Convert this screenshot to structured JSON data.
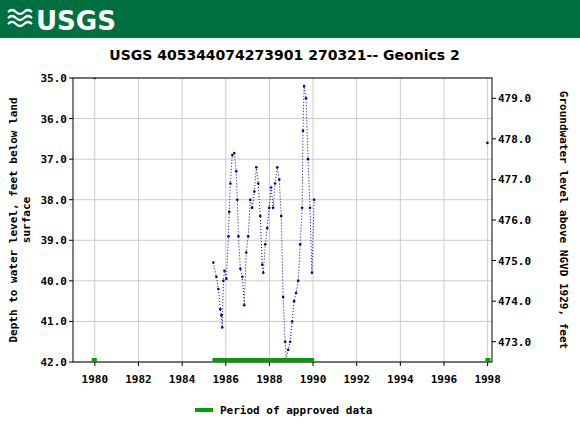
{
  "chart_data": {
    "type": "line",
    "logo_text": "USGS",
    "title": "USGS 405344074273901 270321-- Geonics 2",
    "ylabel": [
      "Depth to water level, feet below land",
      "surface"
    ],
    "y2label": "Groundwater level above NGVD 1929, feet",
    "xlim": [
      1979.0,
      1998.2
    ],
    "ylim": [
      35.0,
      42.0
    ],
    "y2lim": [
      479.5,
      472.5
    ],
    "xticks": [
      1980,
      1982,
      1984,
      1986,
      1988,
      1990,
      1992,
      1994,
      1996,
      1998
    ],
    "yticks": [
      {
        "value": 35,
        "label": "35.0"
      },
      {
        "value": 36,
        "label": "36.0"
      },
      {
        "value": 37,
        "label": "37.0"
      },
      {
        "value": 38,
        "label": "38.0"
      },
      {
        "value": 39,
        "label": "39.0"
      },
      {
        "value": 40,
        "label": "40.0"
      },
      {
        "value": 41,
        "label": "41.0"
      },
      {
        "value": 42,
        "label": "42.0"
      }
    ],
    "y2ticks": [
      {
        "value": 473,
        "label": "473.0"
      },
      {
        "value": 474,
        "label": "474.0"
      },
      {
        "value": 475,
        "label": "475.0"
      },
      {
        "value": 476,
        "label": "476.0"
      },
      {
        "value": 477,
        "label": "477.0"
      },
      {
        "value": 478,
        "label": "478.0"
      },
      {
        "value": 479,
        "label": "479.0"
      }
    ],
    "grid": true,
    "legend": "bottom",
    "series": [
      {
        "color": "#00008b",
        "marker": "dot",
        "line_style": "dotted",
        "x": [
          1980.0,
          null,
          1985.43,
          1985.57,
          1985.66,
          1985.75,
          1985.8,
          1985.84,
          1985.89,
          1985.94,
          1986.03,
          1986.12,
          1986.16,
          1986.21,
          1986.3,
          1986.39,
          1986.48,
          1986.53,
          1986.58,
          1986.67,
          1986.76,
          1986.85,
          1986.94,
          1987.03,
          1987.12,
          1987.21,
          1987.31,
          1987.4,
          1987.49,
          1987.58,
          1987.67,
          1987.72,
          1987.81,
          1987.9,
          1987.99,
          1988.08,
          1988.17,
          1988.26,
          1988.36,
          1988.45,
          1988.54,
          1988.63,
          1988.72,
          1988.77,
          1988.86,
          1988.95,
          1989.04,
          1989.13,
          1989.22,
          1989.32,
          1989.41,
          1989.5,
          1989.54,
          1989.59,
          1989.68,
          1989.77,
          1989.86,
          1989.95,
          1990.05,
          null,
          1997.99
        ],
        "values": [
          35.0,
          null,
          39.55,
          39.9,
          40.2,
          40.7,
          40.85,
          41.15,
          40.0,
          39.75,
          39.95,
          38.9,
          38.3,
          37.6,
          36.9,
          36.85,
          37.3,
          38.0,
          38.9,
          39.7,
          39.9,
          40.6,
          39.3,
          38.9,
          38.0,
          38.2,
          37.8,
          37.2,
          37.6,
          38.4,
          39.6,
          39.8,
          39.1,
          38.7,
          38.2,
          37.7,
          38.2,
          37.6,
          37.2,
          37.5,
          38.4,
          40.4,
          41.5,
          41.95,
          41.7,
          41.5,
          41.0,
          40.5,
          40.3,
          40.0,
          39.1,
          38.2,
          36.3,
          35.2,
          35.5,
          37.0,
          38.2,
          39.8,
          38.0,
          null,
          36.6
        ]
      },
      {
        "name": "Period of approved data",
        "color": "#00a000",
        "type": "range",
        "ranges": [
          [
            1979.86,
            1980.09
          ],
          [
            1985.39,
            1990.05
          ],
          [
            1997.9,
            1998.13
          ]
        ]
      }
    ]
  }
}
